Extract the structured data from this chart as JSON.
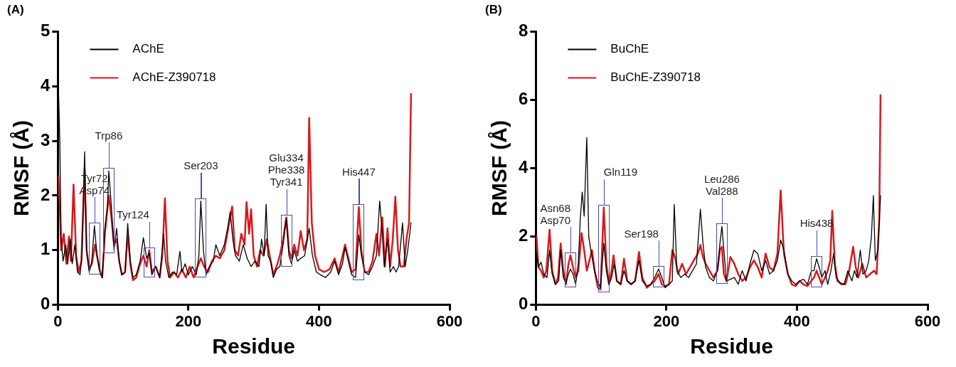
{
  "chart_data": [
    {
      "type": "line",
      "title": "(A)",
      "xlabel": "Residue",
      "ylabel": "RMSF (Å)",
      "xlim": [
        0,
        600
      ],
      "xticks": [
        0,
        200,
        400,
        600
      ],
      "ylim": [
        0,
        5
      ],
      "yticks": [
        0,
        1,
        2,
        3,
        4,
        5
      ],
      "grid": false,
      "legend": "top left",
      "marker": "none",
      "line_style": "solid",
      "series": [
        {
          "name": "AChE",
          "color": "#000000",
          "x": [
            1,
            3,
            5,
            8,
            12,
            15,
            19,
            22,
            26,
            30,
            34,
            37,
            41,
            44,
            48,
            52,
            56,
            60,
            64,
            68,
            72,
            76,
            78,
            82,
            86,
            90,
            94,
            98,
            103,
            107,
            111,
            115,
            120,
            126,
            131,
            136,
            140,
            144,
            150,
            156,
            162,
            165,
            170,
            176,
            182,
            187,
            190,
            195,
            200,
            206,
            212,
            216,
            219,
            223,
            227,
            232,
            238,
            242,
            248,
            255,
            260,
            264,
            268,
            272,
            278,
            284,
            290,
            296,
            302,
            308,
            312,
            316,
            319,
            322,
            326,
            330,
            335,
            340,
            345,
            350,
            354,
            358,
            362,
            367,
            372,
            378,
            385,
            390,
            396,
            402,
            410,
            418,
            424,
            430,
            436,
            440,
            445,
            450,
            456,
            461,
            465,
            470,
            476,
            482,
            488,
            493,
            497,
            500,
            505,
            509,
            514,
            518,
            522,
            528,
            532,
            536,
            541
          ],
          "values": [
            3.9,
            3.0,
            1.2,
            0.8,
            1.1,
            0.75,
            1.2,
            0.75,
            1.1,
            0.6,
            0.55,
            0.9,
            2.8,
            1.0,
            0.6,
            0.8,
            1.45,
            0.9,
            0.6,
            0.5,
            1.4,
            1.8,
            2.45,
            1.8,
            1.0,
            1.4,
            0.8,
            0.55,
            0.6,
            1.49,
            0.8,
            0.5,
            0.55,
            0.8,
            1.23,
            0.85,
            0.95,
            0.55,
            0.7,
            0.5,
            1.3,
            0.8,
            0.5,
            0.6,
            0.55,
            0.98,
            0.6,
            0.75,
            0.55,
            0.7,
            0.55,
            0.9,
            1.9,
            1.0,
            0.55,
            0.7,
            0.8,
            1.1,
            0.9,
            1.1,
            1.4,
            1.7,
            1.2,
            0.9,
            0.8,
            1.1,
            0.85,
            0.7,
            0.8,
            0.7,
            1.2,
            0.9,
            1.84,
            0.9,
            0.8,
            0.5,
            0.65,
            0.7,
            1.1,
            1.58,
            0.9,
            0.75,
            1.0,
            0.8,
            0.85,
            0.9,
            1.4,
            0.9,
            0.6,
            0.55,
            0.5,
            0.6,
            0.8,
            0.55,
            0.75,
            1.05,
            0.8,
            0.55,
            0.5,
            1.28,
            0.9,
            0.6,
            0.55,
            0.7,
            0.9,
            1.9,
            1.3,
            0.7,
            1.2,
            0.6,
            0.7,
            0.6,
            0.7,
            1.5,
            0.7,
            1.0,
            1.5
          ]
        },
        {
          "name": "AChE-Z390718",
          "color": "#d7191c",
          "x": [
            1,
            3,
            5,
            9,
            13,
            17,
            20,
            24,
            28,
            32,
            36,
            41,
            44,
            48,
            52,
            57,
            60,
            64,
            68,
            72,
            78,
            82,
            86,
            90,
            94,
            98,
            103,
            107,
            111,
            115,
            120,
            126,
            131,
            136,
            140,
            144,
            150,
            156,
            160,
            164,
            168,
            172,
            178,
            184,
            190,
            196,
            202,
            208,
            214,
            219,
            224,
            230,
            236,
            242,
            248,
            255,
            261,
            267,
            271,
            276,
            281,
            286,
            289,
            293,
            296,
            300,
            305,
            310,
            315,
            320,
            326,
            330,
            335,
            340,
            345,
            350,
            354,
            358,
            362,
            367,
            372,
            377,
            382,
            385,
            389,
            394,
            400,
            408,
            416,
            424,
            430,
            436,
            440,
            445,
            450,
            456,
            461,
            465,
            470,
            476,
            482,
            488,
            492,
            497,
            501,
            505,
            509,
            513,
            517,
            521,
            525,
            530,
            534,
            538,
            541
          ],
          "values": [
            2.35,
            1.8,
            1.0,
            1.3,
            0.75,
            1.25,
            0.8,
            2.2,
            0.9,
            0.6,
            0.8,
            2.5,
            1.0,
            0.65,
            0.75,
            1.1,
            0.9,
            0.65,
            0.5,
            1.3,
            2.0,
            1.6,
            1.1,
            1.2,
            0.8,
            0.55,
            0.6,
            1.3,
            0.75,
            0.45,
            0.5,
            0.75,
            0.9,
            0.7,
            1.0,
            0.6,
            0.7,
            0.5,
            0.9,
            1.95,
            0.8,
            0.5,
            0.6,
            0.5,
            0.65,
            0.5,
            0.7,
            0.5,
            0.7,
            0.85,
            0.7,
            0.6,
            0.8,
            0.9,
            0.85,
            1.0,
            1.4,
            1.8,
            1.0,
            0.9,
            1.3,
            1.1,
            1.88,
            1.3,
            1.75,
            0.9,
            0.7,
            1.0,
            0.9,
            1.2,
            0.8,
            0.55,
            0.7,
            0.9,
            1.2,
            1.6,
            1.0,
            0.85,
            1.1,
            0.9,
            1.35,
            1.0,
            1.2,
            3.42,
            1.5,
            0.9,
            0.65,
            0.6,
            0.65,
            0.85,
            0.6,
            0.9,
            1.1,
            0.85,
            0.6,
            0.65,
            1.79,
            1.0,
            0.6,
            0.6,
            0.8,
            1.3,
            0.9,
            1.6,
            0.7,
            1.4,
            0.7,
            1.2,
            1.98,
            1.0,
            0.7,
            0.7,
            1.2,
            1.5,
            3.86
          ]
        }
      ],
      "annotations": [
        {
          "text": "Tyr72\nAsp74",
          "x": 56,
          "y": 1.45
        },
        {
          "text": "Trp86",
          "x": 78,
          "y": 2.45
        },
        {
          "text": "Tyr124",
          "x": 140,
          "y": 1.0
        },
        {
          "text": "Ser203",
          "x": 219,
          "y": 1.9
        },
        {
          "text": "Glu334\nPhe338\nTyr341",
          "x": 350,
          "y": 1.6
        },
        {
          "text": "His447",
          "x": 461,
          "y": 1.79
        }
      ]
    },
    {
      "type": "line",
      "title": "(B)",
      "xlabel": "Residue",
      "ylabel": "RMSF (Å)",
      "xlim": [
        0,
        600
      ],
      "xticks": [
        0,
        200,
        400,
        600
      ],
      "ylim": [
        0,
        8
      ],
      "yticks": [
        0,
        2,
        4,
        6,
        8
      ],
      "grid": false,
      "legend": "top left",
      "marker": "none",
      "line_style": "solid",
      "series": [
        {
          "name": "BuChE",
          "color": "#000000",
          "x": [
            1,
            4,
            8,
            12,
            17,
            21,
            25,
            30,
            35,
            38,
            42,
            46,
            50,
            53,
            57,
            61,
            65,
            68,
            71,
            74,
            78,
            81,
            85,
            90,
            94,
            99,
            104,
            108,
            112,
            116,
            120,
            124,
            130,
            135,
            140,
            146,
            152,
            158,
            163,
            170,
            176,
            182,
            188,
            193,
            198,
            204,
            209,
            212,
            216,
            222,
            228,
            234,
            240,
            246,
            252,
            256,
            260,
            266,
            272,
            278,
            282,
            285,
            288,
            292,
            298,
            304,
            310,
            316,
            322,
            328,
            334,
            340,
            346,
            352,
            358,
            364,
            370,
            375,
            380,
            386,
            392,
            398,
            404,
            410,
            416,
            422,
            426,
            430,
            434,
            438,
            443,
            447,
            452,
            456,
            460,
            466,
            472,
            478,
            484,
            488,
            492,
            497,
            501,
            506,
            510,
            514,
            517,
            520,
            524,
            528
          ],
          "values": [
            1.5,
            1.1,
            1.25,
            0.9,
            0.8,
            1.6,
            0.9,
            0.6,
            0.7,
            1.6,
            0.8,
            0.65,
            0.9,
            1.05,
            0.9,
            0.6,
            1.2,
            2.5,
            3.3,
            2.6,
            4.9,
            2.0,
            1.5,
            1.0,
            0.7,
            0.5,
            1.8,
            1.0,
            0.6,
            0.8,
            1.2,
            0.7,
            0.6,
            1.0,
            0.7,
            0.6,
            0.7,
            1.3,
            0.7,
            0.55,
            0.6,
            0.8,
            1.05,
            0.8,
            0.5,
            0.6,
            0.7,
            2.94,
            1.0,
            0.8,
            0.9,
            0.8,
            1.0,
            1.2,
            2.8,
            1.8,
            1.1,
            0.8,
            0.7,
            1.0,
            1.8,
            2.3,
            1.6,
            0.7,
            0.75,
            0.8,
            0.6,
            1.0,
            0.7,
            1.2,
            1.6,
            1.5,
            1.0,
            1.3,
            0.9,
            1.0,
            1.3,
            1.9,
            1.6,
            0.9,
            0.7,
            0.6,
            0.7,
            0.75,
            0.6,
            1.0,
            1.0,
            1.35,
            1.1,
            0.8,
            1.0,
            0.6,
            1.0,
            1.5,
            0.8,
            0.65,
            0.6,
            1.0,
            0.7,
            1.0,
            0.8,
            1.6,
            0.9,
            1.0,
            1.3,
            2.0,
            3.2,
            1.3,
            1.6,
            3.2
          ]
        },
        {
          "name": "BuChE-Z390718",
          "color": "#d7191c",
          "x": [
            1,
            4,
            8,
            12,
            16,
            21,
            25,
            30,
            34,
            38,
            42,
            46,
            50,
            53,
            57,
            61,
            65,
            70,
            74,
            78,
            82,
            86,
            90,
            95,
            99,
            104,
            108,
            112,
            116,
            119,
            124,
            130,
            135,
            140,
            146,
            152,
            158,
            163,
            170,
            176,
            182,
            188,
            193,
            198,
            204,
            209,
            213,
            218,
            224,
            230,
            236,
            242,
            248,
            252,
            256,
            260,
            266,
            272,
            278,
            282,
            285,
            288,
            292,
            298,
            304,
            310,
            316,
            322,
            328,
            334,
            340,
            346,
            352,
            358,
            364,
            370,
            375,
            380,
            386,
            392,
            398,
            404,
            410,
            416,
            422,
            426,
            430,
            434,
            438,
            443,
            447,
            451,
            454,
            458,
            462,
            468,
            474,
            480,
            486,
            490,
            494,
            500,
            506,
            512,
            518,
            522,
            526,
            528
          ],
          "values": [
            2.0,
            1.1,
            1.0,
            0.8,
            1.0,
            2.2,
            1.0,
            0.6,
            0.8,
            1.8,
            1.0,
            0.6,
            1.2,
            1.45,
            1.1,
            0.8,
            1.0,
            2.1,
            1.6,
            1.0,
            1.3,
            1.6,
            1.0,
            0.5,
            0.45,
            2.85,
            1.2,
            0.6,
            1.0,
            1.45,
            0.7,
            0.6,
            1.35,
            0.7,
            0.6,
            0.7,
            1.55,
            0.8,
            0.5,
            0.6,
            0.7,
            0.9,
            0.6,
            0.55,
            0.6,
            1.6,
            1.4,
            0.9,
            1.2,
            0.9,
            1.1,
            1.3,
            1.5,
            1.75,
            1.4,
            1.2,
            1.0,
            0.8,
            1.0,
            1.6,
            1.7,
            0.9,
            0.7,
            1.4,
            1.2,
            0.9,
            0.7,
            0.8,
            1.1,
            1.3,
            1.1,
            0.8,
            1.5,
            1.1,
            1.0,
            1.5,
            3.35,
            1.5,
            0.9,
            0.6,
            0.55,
            0.7,
            0.6,
            0.55,
            0.7,
            0.8,
            1.0,
            0.8,
            0.6,
            0.8,
            1.0,
            1.3,
            2.75,
            1.2,
            0.7,
            0.6,
            0.6,
            1.0,
            1.7,
            1.1,
            0.8,
            1.2,
            0.8,
            0.9,
            1.0,
            0.9,
            2.5,
            6.14
          ]
        }
      ],
      "annotations": [
        {
          "text": "Asn68\nAsp70",
          "x": 53,
          "y": 1.45
        },
        {
          "text": "Gln119",
          "x": 104,
          "y": 2.85
        },
        {
          "text": "Ser198",
          "x": 188,
          "y": 1.05
        },
        {
          "text": "Leu286\nVal288",
          "x": 285,
          "y": 2.3
        },
        {
          "text": "His438",
          "x": 430,
          "y": 1.35
        }
      ]
    }
  ]
}
